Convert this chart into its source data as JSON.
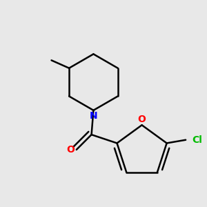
{
  "background_color": "#e8e8e8",
  "bond_color": "#000000",
  "bond_width": 1.8,
  "atom_colors": {
    "N": "#0000ff",
    "O_carbonyl": "#ff0000",
    "O_furan": "#ff0000",
    "Cl": "#00bb00"
  },
  "font_size_label": 10,
  "figsize": [
    3.0,
    3.0
  ],
  "dpi": 100
}
